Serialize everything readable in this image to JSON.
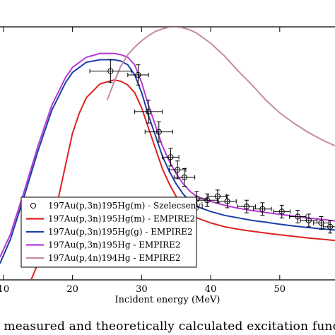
{
  "chart_data": {
    "type": "line",
    "xlabel": "Incident energy (MeV)",
    "xlim": [
      9.5,
      58
    ],
    "ylim": [
      0,
      100
    ],
    "xticks": [
      10,
      20,
      30,
      40,
      50
    ],
    "legend_position": "bottom-left",
    "series": [
      {
        "name": "197Au(p,3n)195Hg(m) - Szelecsenyi",
        "kind": "points",
        "color": "#000000",
        "points": [
          {
            "x": 25.5,
            "y": 82.5,
            "xerr": 3.0,
            "yerr": 4.5
          },
          {
            "x": 29.5,
            "y": 81.0,
            "xerr": 1.5,
            "yerr": 4.0
          },
          {
            "x": 31.0,
            "y": 66.5,
            "xerr": 2.0,
            "yerr": 4.5
          },
          {
            "x": 32.5,
            "y": 58.5,
            "xerr": 2.0,
            "yerr": 4.0
          },
          {
            "x": 34.2,
            "y": 48.5,
            "xerr": 1.2,
            "yerr": 3.5
          },
          {
            "x": 35.2,
            "y": 43.5,
            "xerr": 1.2,
            "yerr": 3.5
          },
          {
            "x": 36.2,
            "y": 40.5,
            "xerr": 1.5,
            "yerr": 3.5
          },
          {
            "x": 38.0,
            "y": 32.0,
            "xerr": 1.5,
            "yerr": 3.0
          },
          {
            "x": 39.5,
            "y": 31.5,
            "xerr": 1.5,
            "yerr": 2.5
          },
          {
            "x": 41.0,
            "y": 33.0,
            "xerr": 1.3,
            "yerr": 2.5
          },
          {
            "x": 42.4,
            "y": 31.0,
            "xerr": 1.3,
            "yerr": 2.5
          },
          {
            "x": 45.2,
            "y": 29.0,
            "xerr": 1.3,
            "yerr": 2.5
          },
          {
            "x": 47.5,
            "y": 28.0,
            "xerr": 1.3,
            "yerr": 2.5
          },
          {
            "x": 50.3,
            "y": 27.0,
            "xerr": 1.2,
            "yerr": 2.5
          },
          {
            "x": 52.6,
            "y": 25.0,
            "xerr": 1.2,
            "yerr": 2.5
          },
          {
            "x": 54.2,
            "y": 23.5,
            "xerr": 1.2,
            "yerr": 2.5
          },
          {
            "x": 56.0,
            "y": 22.5,
            "xerr": 1.1,
            "yerr": 2.5
          },
          {
            "x": 57.3,
            "y": 21.0,
            "xerr": 1.0,
            "yerr": 2.5
          }
        ]
      },
      {
        "name": "197Au(p,3n)195Hg(m) - EMPIRE2",
        "kind": "line",
        "color": "#dd2222",
        "x": [
          14,
          16,
          18,
          20,
          21,
          22,
          24,
          26,
          27,
          28,
          29,
          30,
          31,
          32,
          33,
          34,
          35,
          36,
          37,
          38,
          40,
          42,
          44,
          46,
          48,
          50,
          52,
          54,
          56,
          58
        ],
        "y": [
          0,
          13,
          33,
          58,
          66,
          72,
          77.5,
          79,
          78.5,
          77,
          74,
          68,
          60,
          52,
          44,
          38,
          33,
          29,
          26,
          24.5,
          22.5,
          21,
          20,
          19.2,
          18.5,
          17.8,
          17.2,
          16.6,
          16.1,
          15.6
        ]
      },
      {
        "name": "197Au(p,3n)195Hg(g) - EMPIRE2",
        "kind": "line",
        "color": "#1a3fa8",
        "x": [
          9.5,
          11,
          13,
          15,
          17,
          19,
          20,
          22,
          24,
          26,
          27,
          28,
          29,
          30,
          31,
          32,
          33,
          34,
          35,
          36,
          37,
          38,
          40,
          42,
          44,
          46,
          48,
          50,
          52,
          54,
          56,
          58
        ],
        "y": [
          6.5,
          16,
          33,
          51,
          67,
          78,
          82,
          86,
          87,
          87,
          86.5,
          85,
          81,
          74,
          65,
          57,
          49,
          43,
          38,
          34,
          31,
          29,
          27,
          25.5,
          24.5,
          23.5,
          22.8,
          22,
          21.3,
          20.7,
          20.2,
          19.7
        ]
      },
      {
        "name": "197Au(p,3n)195Hg - EMPIRE2",
        "kind": "line",
        "color": "#b63ad6",
        "x": [
          9.5,
          11,
          13,
          15,
          17,
          19,
          20,
          22,
          24,
          26,
          27,
          28,
          29,
          30,
          31,
          32,
          33,
          34,
          35,
          36,
          37,
          38,
          40,
          42,
          44,
          46,
          48,
          50,
          52,
          54,
          56,
          58
        ],
        "y": [
          9,
          18,
          35,
          53,
          69,
          80,
          84,
          88,
          89.5,
          89.5,
          89,
          88,
          85,
          78,
          69,
          61,
          53,
          47,
          42,
          38,
          35,
          33,
          31,
          29.5,
          28.3,
          27.4,
          26.6,
          25.9,
          25.2,
          24.5,
          23.9,
          23.3
        ]
      },
      {
        "name": "197Au(p,4n)194Hg - EMPIRE2",
        "kind": "line",
        "color": "#c58aa2",
        "x": [
          25,
          26,
          27,
          28,
          29,
          30,
          31,
          32,
          33,
          34,
          35,
          36,
          37,
          38,
          39,
          40,
          41,
          42,
          43,
          44,
          46,
          48,
          50,
          52,
          54,
          56,
          58
        ],
        "y": [
          71,
          78,
          84.5,
          89,
          92,
          94.5,
          96.5,
          98.2,
          99.2,
          99.9,
          100,
          99.6,
          98.8,
          97.5,
          95.5,
          93.5,
          91,
          88.5,
          85.5,
          82.5,
          77,
          71,
          66,
          62,
          58.5,
          55.5,
          53
        ]
      }
    ]
  },
  "caption": "y measured and theoretically calculated excitation funct"
}
